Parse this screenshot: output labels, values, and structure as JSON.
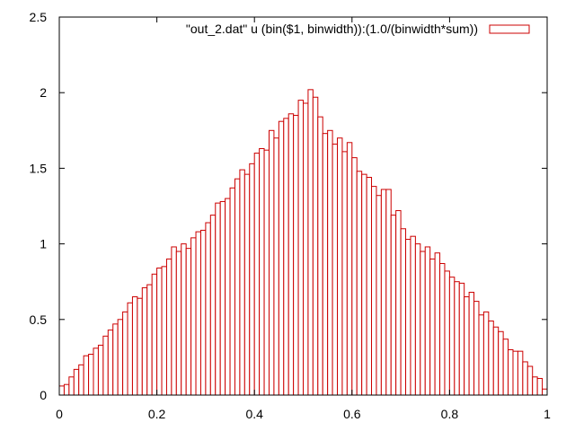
{
  "chart_data": {
    "type": "bar",
    "title": "",
    "xlabel": "",
    "ylabel": "",
    "xlim": [
      0,
      1
    ],
    "ylim": [
      0,
      2.5
    ],
    "bin_width": 0.01,
    "x_ticks": [
      {
        "value": 0,
        "label": "0"
      },
      {
        "value": 0.2,
        "label": "0.2"
      },
      {
        "value": 0.4,
        "label": "0.4"
      },
      {
        "value": 0.6,
        "label": "0.6"
      },
      {
        "value": 0.8,
        "label": "0.8"
      },
      {
        "value": 1,
        "label": "1"
      }
    ],
    "y_ticks": [
      {
        "value": 0,
        "label": "0"
      },
      {
        "value": 0.5,
        "label": "0.5"
      },
      {
        "value": 1,
        "label": "1"
      },
      {
        "value": 1.5,
        "label": "1.5"
      },
      {
        "value": 2,
        "label": "2"
      },
      {
        "value": 2.5,
        "label": "2.5"
      }
    ],
    "legend": {
      "position": "top-right",
      "label": "\"out_2.dat\" u (bin($1, binwidth)):(1.0/(binwidth*sum))"
    },
    "grid": false,
    "colors": {
      "bar_stroke": "#cc0000",
      "bar_fill": "#ffffff",
      "axis": "#000000"
    },
    "series": [
      {
        "name": "\"out_2.dat\" u (bin($1, binwidth)):(1.0/(binwidth*sum))",
        "x": [
          0.005,
          0.015,
          0.025,
          0.035,
          0.045,
          0.055,
          0.065,
          0.075,
          0.085,
          0.095,
          0.105,
          0.115,
          0.125,
          0.135,
          0.145,
          0.155,
          0.165,
          0.175,
          0.185,
          0.195,
          0.205,
          0.215,
          0.225,
          0.235,
          0.245,
          0.255,
          0.265,
          0.275,
          0.285,
          0.295,
          0.305,
          0.315,
          0.325,
          0.335,
          0.345,
          0.355,
          0.365,
          0.375,
          0.385,
          0.395,
          0.405,
          0.415,
          0.425,
          0.435,
          0.445,
          0.455,
          0.465,
          0.475,
          0.485,
          0.495,
          0.505,
          0.515,
          0.525,
          0.535,
          0.545,
          0.555,
          0.565,
          0.575,
          0.585,
          0.595,
          0.605,
          0.615,
          0.625,
          0.635,
          0.645,
          0.655,
          0.665,
          0.675,
          0.685,
          0.695,
          0.705,
          0.715,
          0.725,
          0.735,
          0.745,
          0.755,
          0.765,
          0.775,
          0.785,
          0.795,
          0.805,
          0.815,
          0.825,
          0.835,
          0.845,
          0.855,
          0.865,
          0.875,
          0.885,
          0.895,
          0.905,
          0.915,
          0.925,
          0.935,
          0.945,
          0.955,
          0.965,
          0.975,
          0.985,
          0.995
        ],
        "values": [
          0.06,
          0.07,
          0.12,
          0.17,
          0.2,
          0.26,
          0.27,
          0.31,
          0.33,
          0.39,
          0.43,
          0.47,
          0.5,
          0.55,
          0.61,
          0.65,
          0.64,
          0.71,
          0.73,
          0.8,
          0.84,
          0.85,
          0.9,
          0.98,
          0.95,
          1.0,
          0.97,
          1.04,
          1.08,
          1.09,
          1.14,
          1.19,
          1.27,
          1.28,
          1.3,
          1.37,
          1.43,
          1.49,
          1.46,
          1.53,
          1.6,
          1.63,
          1.62,
          1.75,
          1.7,
          1.81,
          1.83,
          1.86,
          1.85,
          1.95,
          1.93,
          2.02,
          1.97,
          1.84,
          1.73,
          1.75,
          1.66,
          1.7,
          1.61,
          1.67,
          1.57,
          1.48,
          1.46,
          1.44,
          1.38,
          1.32,
          1.36,
          1.36,
          1.19,
          1.22,
          1.1,
          1.03,
          1.05,
          1.0,
          0.95,
          0.98,
          0.9,
          0.94,
          0.87,
          0.82,
          0.78,
          0.75,
          0.74,
          0.65,
          0.68,
          0.62,
          0.53,
          0.55,
          0.49,
          0.45,
          0.42,
          0.37,
          0.3,
          0.29,
          0.29,
          0.22,
          0.19,
          0.12,
          0.11,
          0.04
        ]
      }
    ]
  }
}
